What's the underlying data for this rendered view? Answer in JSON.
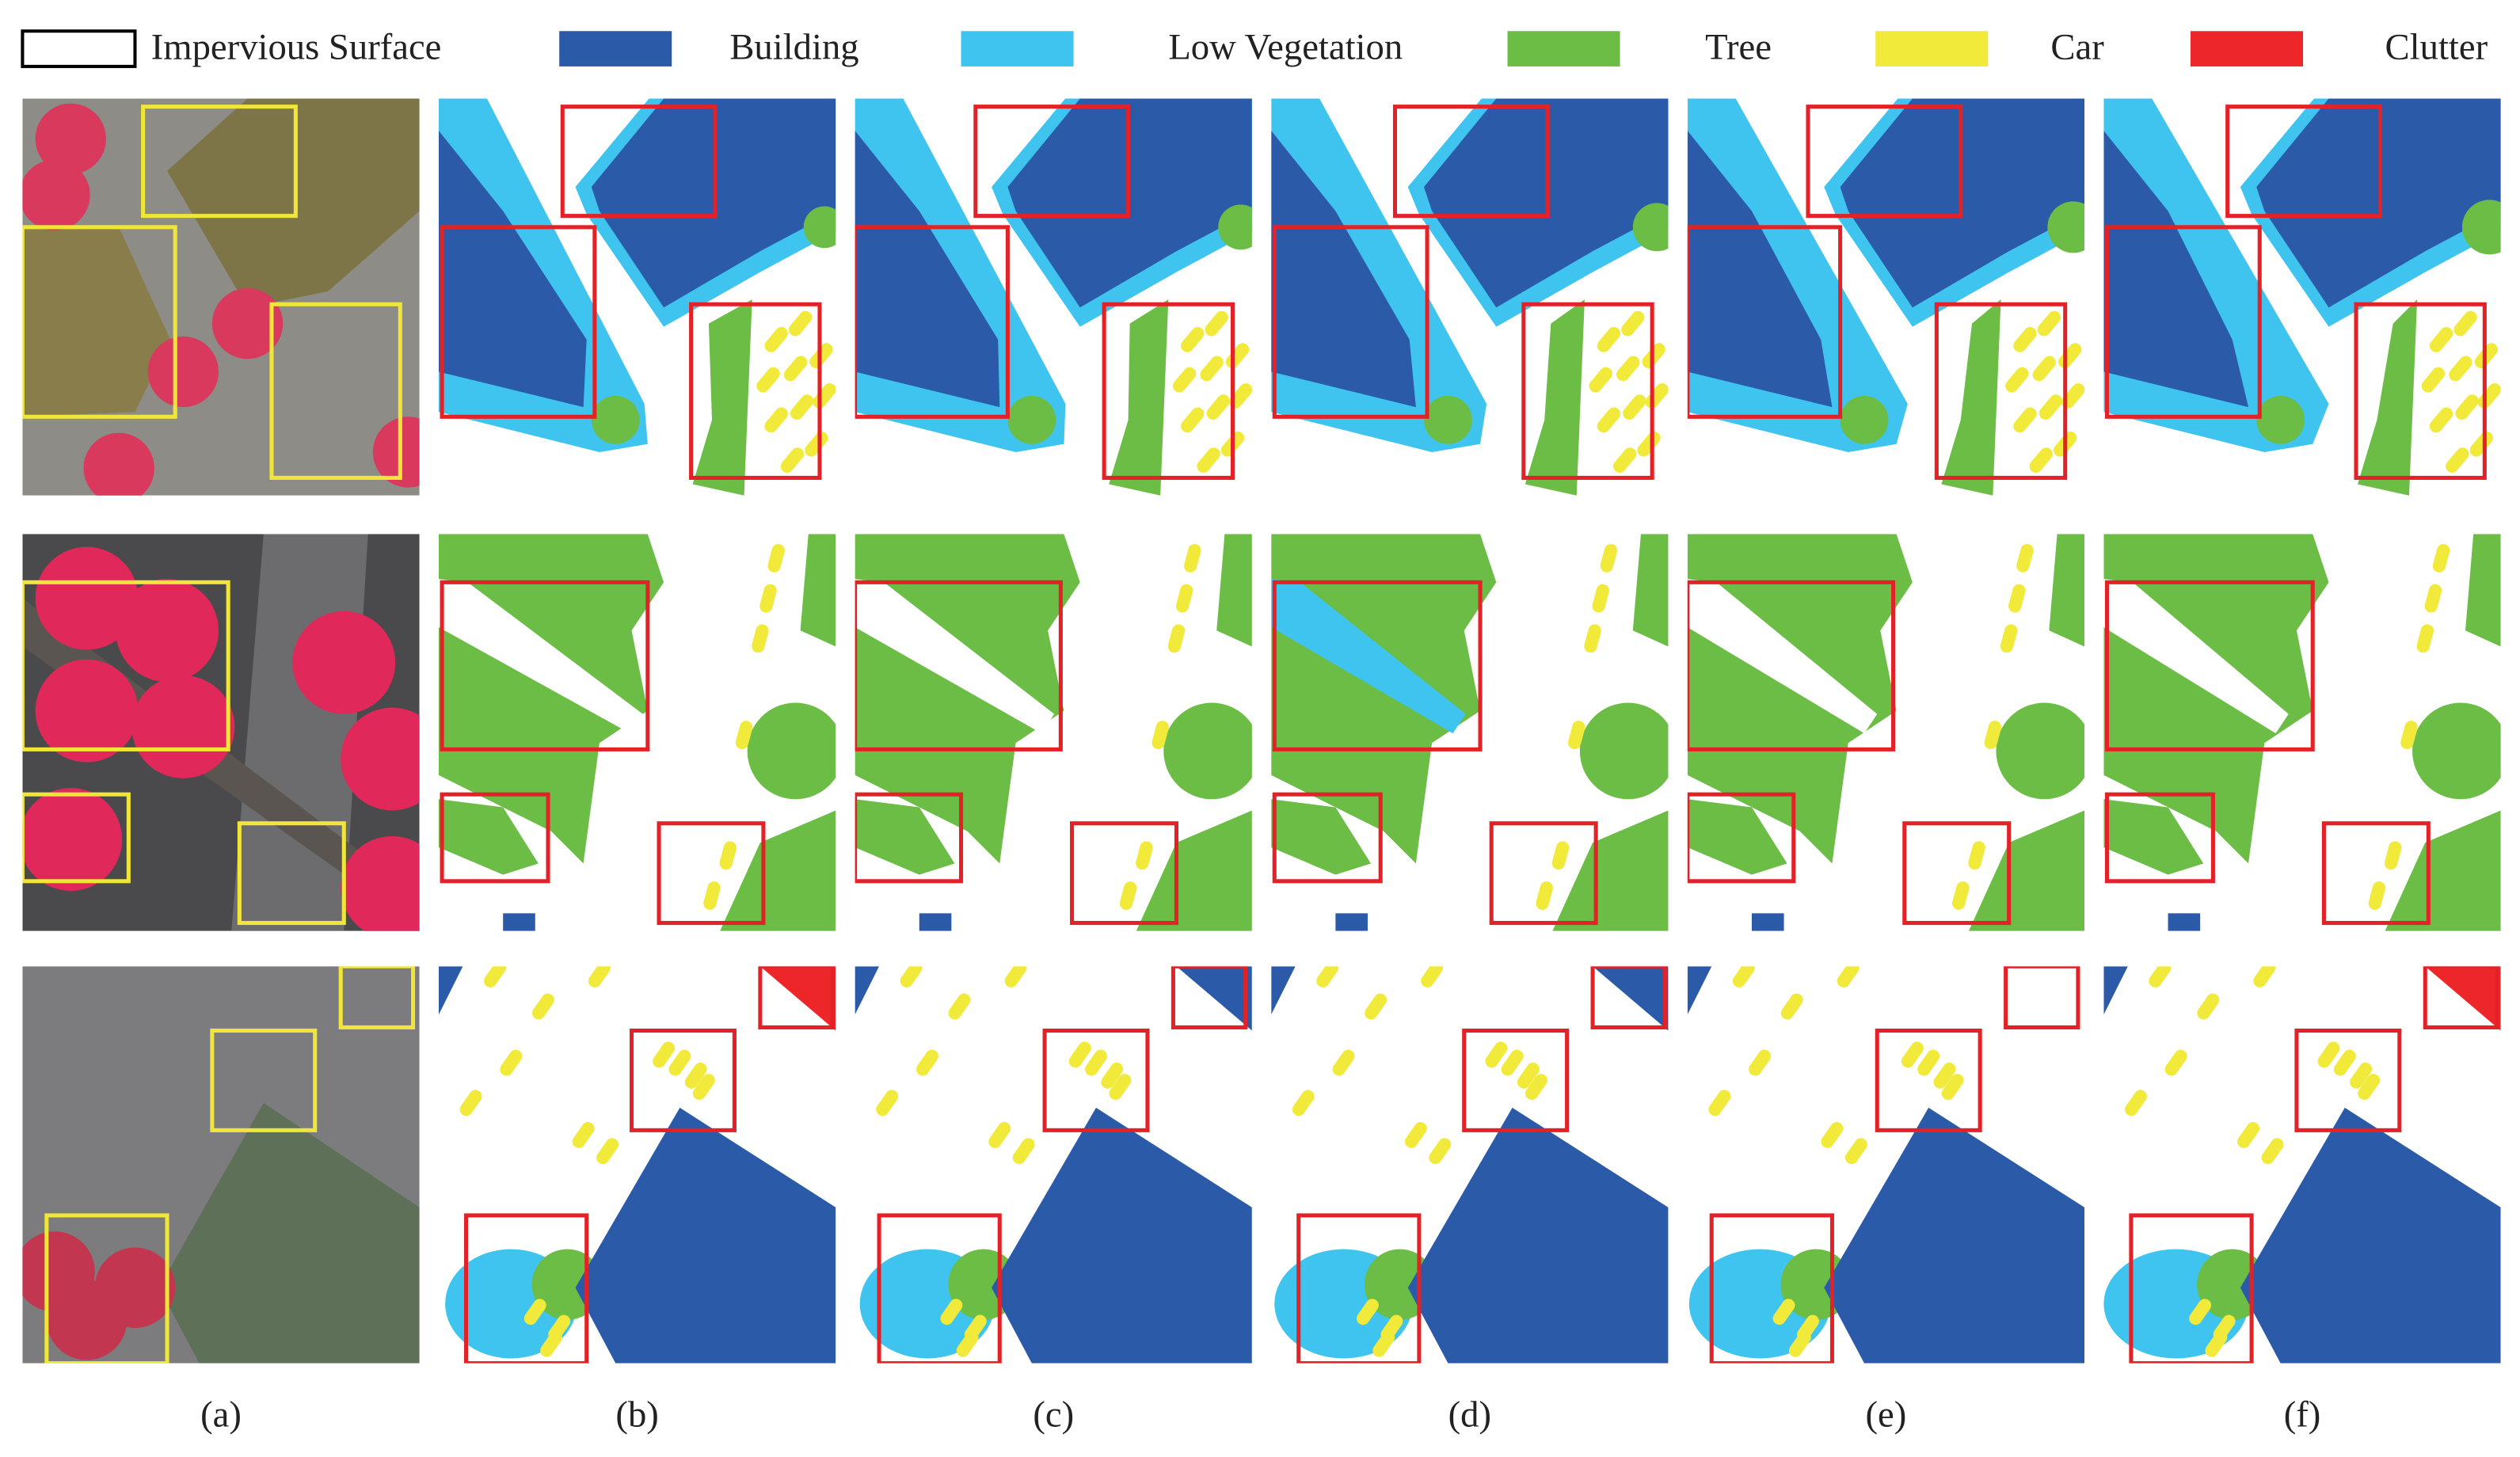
{
  "legend": [
    {
      "label": "Impervious Surface",
      "color": "#ffffff"
    },
    {
      "label": "Building",
      "color": "#2b5aa8"
    },
    {
      "label": "Low Vegetation",
      "color": "#3ec4ef"
    },
    {
      "label": "Tree",
      "color": "#6cbd45"
    },
    {
      "label": "Car",
      "color": "#f1ea3a"
    },
    {
      "label": "Clutter",
      "color": "#ec2629"
    }
  ],
  "panel_labels": [
    "(a)",
    "(b)",
    "(c)",
    "(d)",
    "(e)",
    "(f)"
  ]
}
